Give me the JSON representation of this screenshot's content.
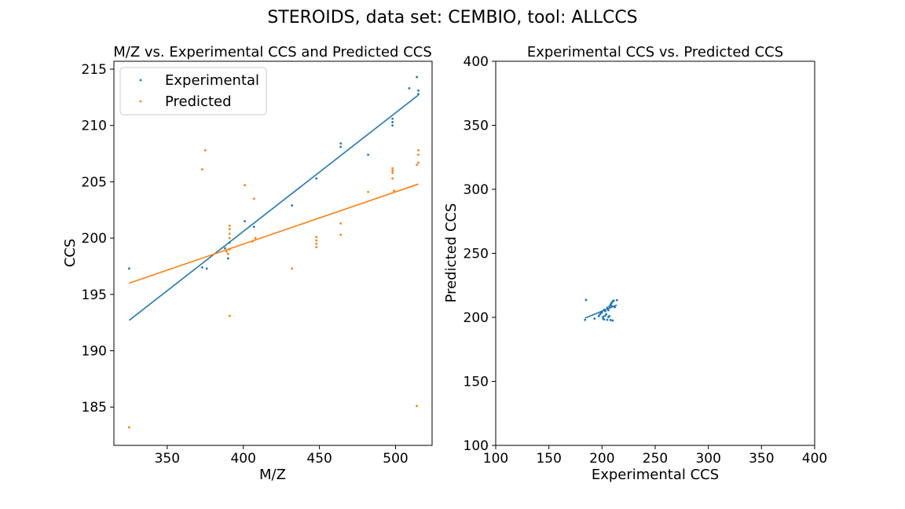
{
  "figure": {
    "suptitle": "STEROIDS, data set: CEMBIO, tool: ALLCCS"
  },
  "colors": {
    "experimental": "#1f77b4",
    "predicted": "#ff7f0e"
  },
  "chart_data": [
    {
      "type": "scatter",
      "title": "M/Z vs. Experimental CCS and Predicted CCS",
      "xlabel": "M/Z",
      "ylabel": "CCS",
      "xlim": [
        315,
        524
      ],
      "ylim": [
        181.6,
        215.7
      ],
      "xticks": [
        350,
        400,
        450,
        500
      ],
      "yticks": [
        185,
        190,
        195,
        200,
        205,
        210,
        215
      ],
      "legend": {
        "placement": "top-left",
        "entries": [
          "Experimental",
          "Predicted"
        ]
      },
      "series": [
        {
          "name": "Experimental",
          "color": "#1f77b4",
          "points": [
            [
              325,
              197.3
            ],
            [
              373,
              197.4
            ],
            [
              376,
              197.3
            ],
            [
              388,
              199.1
            ],
            [
              390,
              198.2
            ],
            [
              391,
              199.6
            ],
            [
              401,
              201.5
            ],
            [
              407,
              201.0
            ],
            [
              432,
              202.9
            ],
            [
              448,
              205.3
            ],
            [
              464,
              208.1
            ],
            [
              464,
              208.4
            ],
            [
              482,
              207.4
            ],
            [
              498,
              210.0
            ],
            [
              498,
              210.3
            ],
            [
              498,
              210.6
            ],
            [
              509,
              213.3
            ],
            [
              514,
              214.3
            ],
            [
              515,
              212.8
            ],
            [
              515,
              213.1
            ]
          ],
          "trend": {
            "x": [
              325,
              515
            ],
            "y": [
              192.7,
              212.7
            ]
          }
        },
        {
          "name": "Predicted",
          "color": "#ff7f0e",
          "points": [
            [
              325,
              183.2
            ],
            [
              373,
              206.1
            ],
            [
              375,
              207.8
            ],
            [
              389,
              198.8
            ],
            [
              390,
              198.6
            ],
            [
              391,
              199.0
            ],
            [
              391,
              200.0
            ],
            [
              391,
              200.4
            ],
            [
              391,
              200.8
            ],
            [
              391,
              201.1
            ],
            [
              391,
              193.1
            ],
            [
              401,
              204.7
            ],
            [
              406,
              199.7
            ],
            [
              407,
              203.5
            ],
            [
              408,
              200.0
            ],
            [
              432,
              197.3
            ],
            [
              448,
              199.2
            ],
            [
              448,
              199.5
            ],
            [
              448,
              199.8
            ],
            [
              448,
              200.1
            ],
            [
              464,
              200.3
            ],
            [
              464,
              201.3
            ],
            [
              482,
              204.1
            ],
            [
              498,
              205.3
            ],
            [
              498,
              205.8
            ],
            [
              498,
              206.0
            ],
            [
              498,
              206.2
            ],
            [
              499,
              204.2
            ],
            [
              514,
              185.1
            ],
            [
              514,
              206.5
            ],
            [
              515,
              206.7
            ],
            [
              515,
              207.4
            ],
            [
              515,
              207.8
            ]
          ],
          "trend": {
            "x": [
              325,
              515
            ],
            "y": [
              196.0,
              204.8
            ]
          }
        }
      ]
    },
    {
      "type": "scatter",
      "title": "Experimental CCS vs. Predicted CCS",
      "xlabel": "Experimental CCS",
      "ylabel": "Predicted CCS",
      "xlim": [
        100,
        400
      ],
      "ylim": [
        100,
        400
      ],
      "xticks": [
        100,
        150,
        200,
        250,
        300,
        350,
        400
      ],
      "yticks": [
        100,
        150,
        200,
        250,
        300,
        350,
        400
      ],
      "series": [
        {
          "color": "#1f77b4",
          "points": [
            [
              184,
              198.0
            ],
            [
              185,
              213.6
            ],
            [
              193,
              199.0
            ],
            [
              197,
              201.0
            ],
            [
              198,
              202.3
            ],
            [
              199,
              203.4
            ],
            [
              200,
              204.0
            ],
            [
              201,
              199.0
            ],
            [
              201,
              200.5
            ],
            [
              202,
              198.4
            ],
            [
              202,
              206.0
            ],
            [
              203,
              201.2
            ],
            [
              203,
              204.8
            ],
            [
              204,
              202.5
            ],
            [
              205,
              207.6
            ],
            [
              205,
              198.1
            ],
            [
              206,
              200.2
            ],
            [
              206,
              205.5
            ],
            [
              207,
              208.5
            ],
            [
              207,
              201.0
            ],
            [
              208,
              210.0
            ],
            [
              208,
              197.9
            ],
            [
              209,
              211.3
            ],
            [
              209,
              209.1
            ],
            [
              210,
              212.4
            ],
            [
              210,
              197.5
            ],
            [
              211,
              213.0
            ],
            [
              212,
              208.0
            ],
            [
              214,
              213.4
            ]
          ],
          "trend": {
            "x": [
              184,
              214
            ],
            "y": [
              199.4,
              209.6
            ]
          }
        }
      ]
    }
  ]
}
